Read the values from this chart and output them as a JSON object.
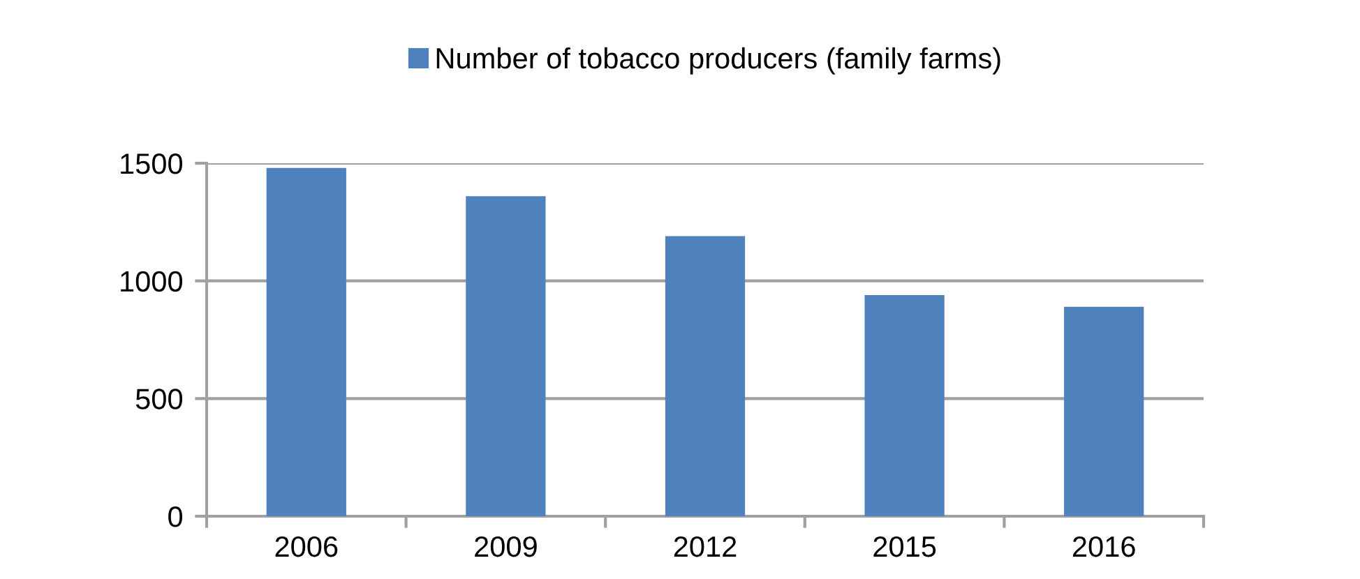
{
  "chart_data": {
    "type": "bar",
    "categories": [
      "2006",
      "2009",
      "2012",
      "2015",
      "2016"
    ],
    "series": [
      {
        "name": "Number of tobacco producers (family farms)",
        "color": "#4f81bd",
        "values": [
          1480,
          1360,
          1190,
          940,
          890
        ]
      }
    ],
    "ylim": [
      0,
      1500
    ],
    "yticks": [
      0,
      500,
      1000,
      1500
    ],
    "grid": "y",
    "legend": "top"
  }
}
